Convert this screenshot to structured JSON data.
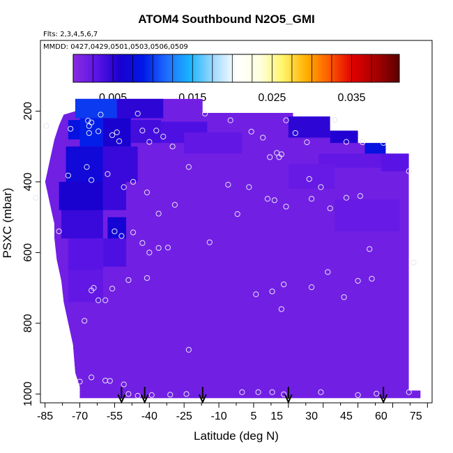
{
  "chart_data": {
    "type": "heatmap",
    "title": "ATOM4 Southbound N2O5_GMI",
    "flights_note": "Flts: 2,3,4,5,6,7",
    "dates_note": "MMDD: 0427,0429,0501,0503,0506,0509",
    "xlabel": "Latitude (deg N)",
    "ylabel": "PSXC (mbar)",
    "xlim": [
      -87,
      82
    ],
    "ylim": [
      1025,
      0
    ],
    "x_ticks": [
      -85,
      -70,
      -55,
      -40,
      -25,
      -10,
      5,
      15,
      30,
      45,
      60,
      75
    ],
    "y_ticks": [
      200,
      400,
      600,
      800,
      1000
    ],
    "colorbar": {
      "range": [
        0,
        0.041
      ],
      "ticks": [
        0.005,
        0.015,
        0.025,
        0.035
      ],
      "tick_labels": [
        "0.005",
        "0.015",
        "0.025",
        "0.035"
      ],
      "colors": [
        "#8a2be2",
        "#5b14e6",
        "#1a00cf",
        "#0018e6",
        "#1e6bff",
        "#19b4ff",
        "#9cd8ff",
        "#ffffff",
        "#ffffe0",
        "#fff46a",
        "#ffb000",
        "#ff5a00",
        "#e00000",
        "#a80000",
        "#5a0000"
      ]
    },
    "background_value": 0.0015,
    "cells": [
      {
        "lat": [
          -72,
          -54
        ],
        "p": [
          165,
          220
        ],
        "v": 0.01
      },
      {
        "lat": [
          -54,
          -34
        ],
        "p": [
          165,
          220
        ],
        "v": 0.005
      },
      {
        "lat": [
          -75,
          -70
        ],
        "p": [
          225,
          280
        ],
        "v": 0.008
      },
      {
        "lat": [
          -70,
          -60
        ],
        "p": [
          220,
          300
        ],
        "v": 0.009
      },
      {
        "lat": [
          -60,
          -48
        ],
        "p": [
          220,
          300
        ],
        "v": 0.006
      },
      {
        "lat": [
          -48,
          -35
        ],
        "p": [
          225,
          290
        ],
        "v": 0.004
      },
      {
        "lat": [
          -35,
          -15
        ],
        "p": [
          230,
          290
        ],
        "v": 0.0035
      },
      {
        "lat": [
          -76,
          -60
        ],
        "p": [
          300,
          400
        ],
        "v": 0.007
      },
      {
        "lat": [
          -60,
          -45
        ],
        "p": [
          300,
          400
        ],
        "v": 0.0045
      },
      {
        "lat": [
          -79,
          -60
        ],
        "p": [
          400,
          480
        ],
        "v": 0.006
      },
      {
        "lat": [
          -60,
          -50
        ],
        "p": [
          400,
          480
        ],
        "v": 0.0045
      },
      {
        "lat": [
          -78,
          -60
        ],
        "p": [
          480,
          560
        ],
        "v": 0.0045
      },
      {
        "lat": [
          -58,
          -50
        ],
        "p": [
          500,
          620
        ],
        "v": 0.0065
      },
      {
        "lat": [
          -75,
          -60
        ],
        "p": [
          560,
          650
        ],
        "v": 0.003
      },
      {
        "lat": [
          -75,
          -60
        ],
        "p": [
          650,
          740
        ],
        "v": 0.0025
      },
      {
        "lat": [
          -60,
          -50
        ],
        "p": [
          560,
          640
        ],
        "v": 0.0035
      },
      {
        "lat": [
          -25,
          0
        ],
        "p": [
          260,
          320
        ],
        "v": 0.0025
      },
      {
        "lat": [
          20,
          38
        ],
        "p": [
          215,
          275
        ],
        "v": 0.005
      },
      {
        "lat": [
          38,
          50
        ],
        "p": [
          255,
          290
        ],
        "v": 0.0055
      },
      {
        "lat": [
          50,
          60
        ],
        "p": [
          260,
          290
        ],
        "v": 0.0045
      },
      {
        "lat": [
          53,
          62
        ],
        "p": [
          290,
          330
        ],
        "v": 0.008
      },
      {
        "lat": [
          33,
          60
        ],
        "p": [
          320,
          360
        ],
        "v": 0.0025
      },
      {
        "lat": [
          60,
          72
        ],
        "p": [
          320,
          370
        ],
        "v": 0.003
      },
      {
        "lat": [
          20,
          40
        ],
        "p": [
          350,
          420
        ],
        "v": 0.0022
      },
      {
        "lat": [
          40,
          68
        ],
        "p": [
          450,
          540
        ],
        "v": 0.0022
      }
    ],
    "domain_outline": [
      [
        -57,
        165
      ],
      [
        -17,
        165
      ],
      [
        -17,
        205
      ],
      [
        22,
        205
      ],
      [
        22,
        215
      ],
      [
        38,
        215
      ],
      [
        38,
        255
      ],
      [
        50,
        255
      ],
      [
        50,
        290
      ],
      [
        62,
        290
      ],
      [
        62,
        320
      ],
      [
        72,
        320
      ],
      [
        72,
        990
      ],
      [
        77,
        990
      ],
      [
        77,
        1012
      ],
      [
        -70,
        1012
      ],
      [
        -70,
        980
      ],
      [
        -72,
        940
      ],
      [
        -73,
        860
      ],
      [
        -75,
        800
      ],
      [
        -77,
        740
      ],
      [
        -78,
        680
      ],
      [
        -80,
        620
      ],
      [
        -81,
        560
      ],
      [
        -81,
        520
      ],
      [
        -83,
        460
      ],
      [
        -85,
        400
      ],
      [
        -83,
        340
      ],
      [
        -81,
        280
      ],
      [
        -79,
        240
      ],
      [
        -77,
        210
      ],
      [
        -72,
        200
      ],
      [
        -72,
        165
      ]
    ],
    "observations": [
      [
        -84.5,
        242
      ],
      [
        -74,
        250
      ],
      [
        -66,
        242
      ],
      [
        -66.5,
        227
      ],
      [
        -65,
        232
      ],
      [
        -66,
        262
      ],
      [
        -62,
        257
      ],
      [
        -61,
        210
      ],
      [
        -56,
        268
      ],
      [
        -54,
        260
      ],
      [
        -53,
        285
      ],
      [
        -45,
        207
      ],
      [
        -43,
        255
      ],
      [
        -40,
        287
      ],
      [
        -37,
        255
      ],
      [
        -34,
        272
      ],
      [
        -30,
        300
      ],
      [
        -23,
        358
      ],
      [
        -16,
        207
      ],
      [
        -5,
        226
      ],
      [
        4,
        258
      ],
      [
        9,
        275
      ],
      [
        12,
        330
      ],
      [
        15,
        318
      ],
      [
        16,
        330
      ],
      [
        17,
        322
      ],
      [
        19,
        226
      ],
      [
        23,
        262
      ],
      [
        28,
        288
      ],
      [
        40,
        225
      ],
      [
        45,
        287
      ],
      [
        52,
        288
      ],
      [
        61,
        290
      ],
      [
        -75,
        382
      ],
      [
        -67,
        358
      ],
      [
        -65,
        395
      ],
      [
        -58,
        378
      ],
      [
        -51,
        415
      ],
      [
        -47,
        400
      ],
      [
        -41,
        430
      ],
      [
        -89,
        445
      ],
      [
        -29,
        465
      ],
      [
        -36,
        490
      ],
      [
        -2,
        491
      ],
      [
        -6,
        408
      ],
      [
        3,
        415
      ],
      [
        11,
        448
      ],
      [
        14,
        452
      ],
      [
        19,
        470
      ],
      [
        29,
        392
      ],
      [
        30,
        448
      ],
      [
        34,
        415
      ],
      [
        38,
        475
      ],
      [
        45,
        445
      ],
      [
        51,
        440
      ],
      [
        72,
        370
      ],
      [
        -79,
        540
      ],
      [
        -55,
        540
      ],
      [
        -52,
        553
      ],
      [
        -47,
        543
      ],
      [
        -43,
        573
      ],
      [
        -36,
        587
      ],
      [
        -32,
        586
      ],
      [
        -14,
        571
      ],
      [
        -40,
        600
      ],
      [
        55,
        590
      ],
      [
        74,
        628
      ],
      [
        -64,
        700
      ],
      [
        -65,
        707
      ],
      [
        -62,
        735
      ],
      [
        -59,
        735
      ],
      [
        -56,
        702
      ],
      [
        -49,
        678
      ],
      [
        -41,
        672
      ],
      [
        6,
        718
      ],
      [
        13,
        710
      ],
      [
        17,
        760
      ],
      [
        18,
        690
      ],
      [
        30,
        698
      ],
      [
        37,
        655
      ],
      [
        44,
        726
      ],
      [
        50,
        680
      ],
      [
        56,
        674
      ],
      [
        -68,
        793
      ],
      [
        -23,
        875
      ],
      [
        -70,
        965
      ],
      [
        -65,
        953
      ],
      [
        -59,
        962
      ],
      [
        -57,
        963
      ],
      [
        -51,
        973
      ],
      [
        -49,
        1000
      ],
      [
        -45,
        1005
      ],
      [
        -39,
        1003
      ],
      [
        -31,
        1002
      ],
      [
        -24,
        1000
      ],
      [
        0,
        995
      ],
      [
        7,
        995
      ],
      [
        13,
        995
      ],
      [
        18,
        1001
      ],
      [
        34,
        995
      ],
      [
        50,
        1003
      ],
      [
        58,
        999
      ],
      [
        72,
        995
      ]
    ],
    "flight_markers_lat": [
      -52,
      -42,
      -17,
      20,
      61
    ]
  }
}
